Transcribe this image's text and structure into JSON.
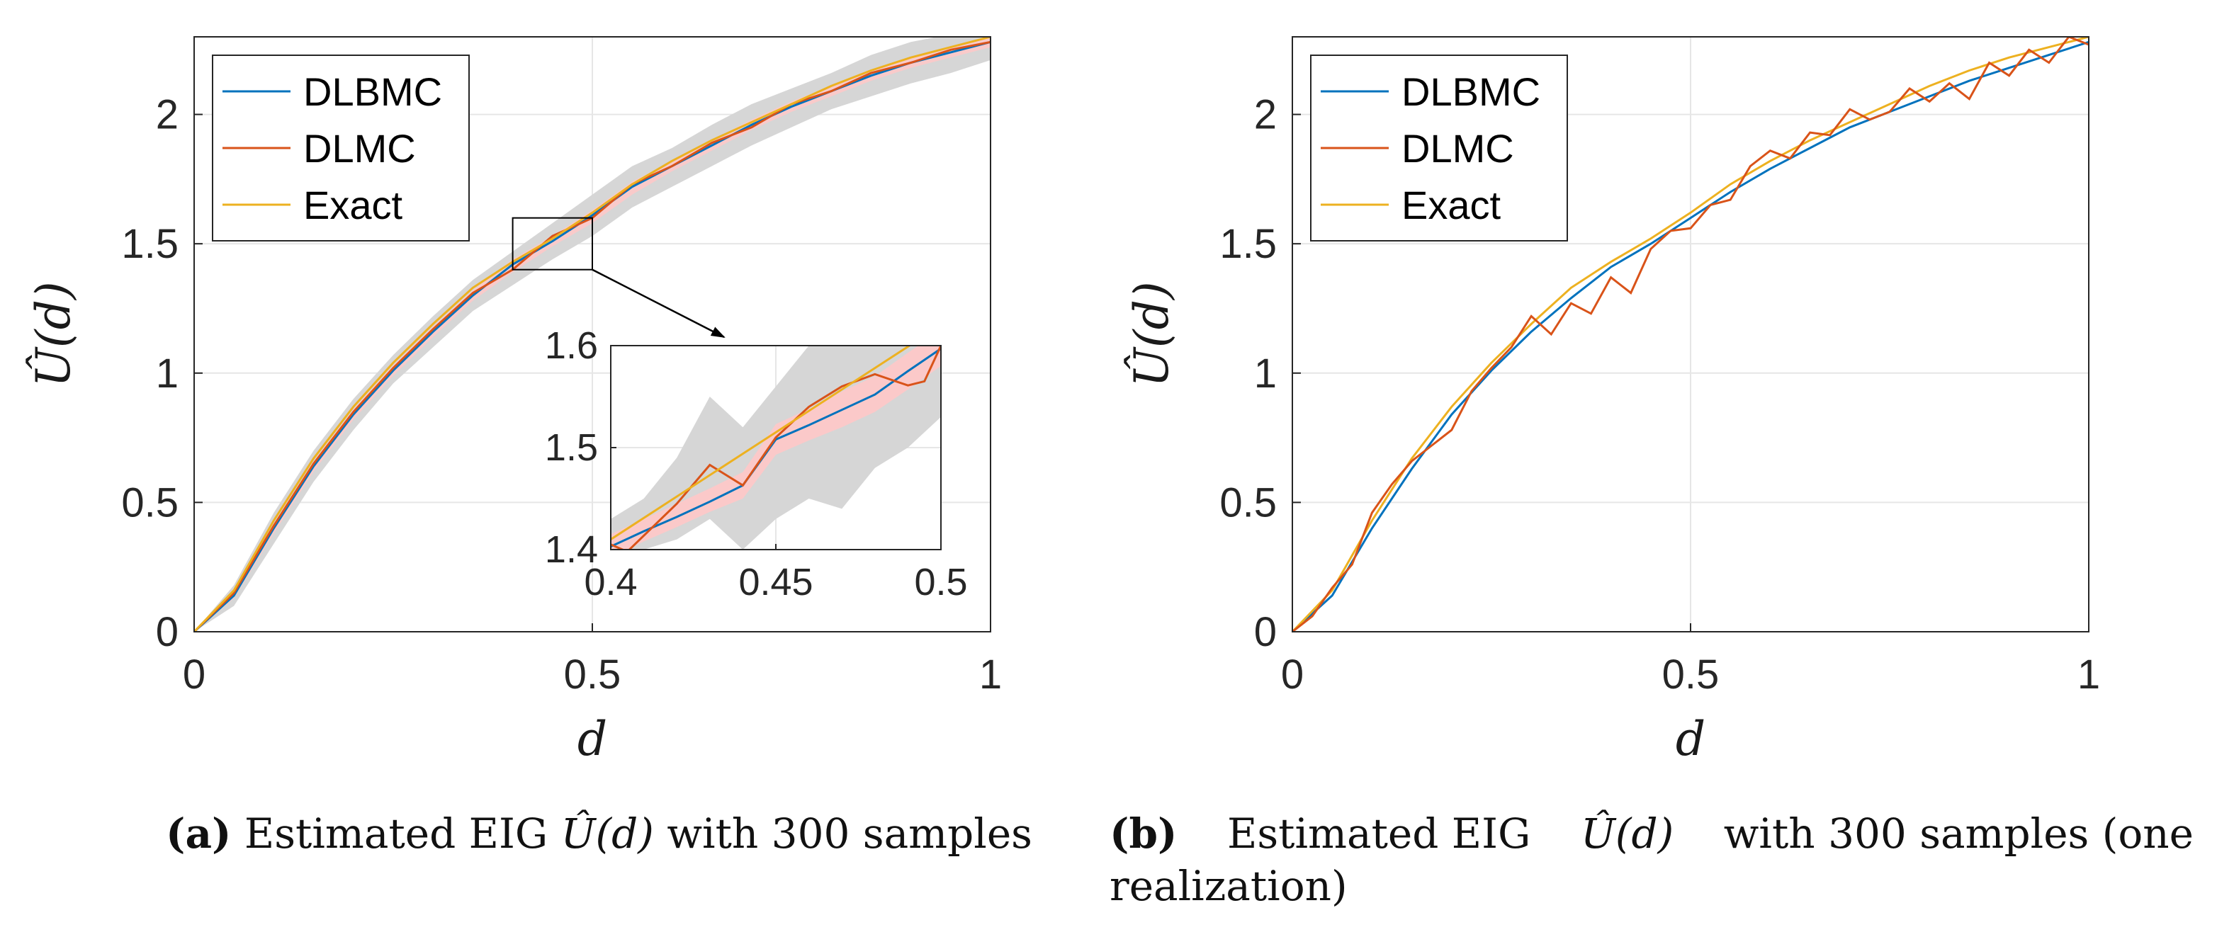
{
  "chart_data": [
    {
      "type": "line",
      "panel": "a",
      "xlabel": "d",
      "ylabel": "Û(d)",
      "xlim": [
        0,
        1
      ],
      "ylim": [
        0,
        2.3
      ],
      "xticks": [
        "0",
        "0.5",
        "1"
      ],
      "yticks": [
        "0",
        "0.5",
        "1",
        "1.5",
        "2"
      ],
      "grid": true,
      "legend_position": "top-left",
      "legend": [
        "DLBMC",
        "DLMC",
        "Exact"
      ],
      "colors": {
        "DLBMC": "#0072BD",
        "DLMC": "#D95319",
        "Exact": "#EDB120",
        "band_outer": "#d4d4d4",
        "band_inner": "#ffc8c8"
      },
      "series": [
        {
          "name": "DLBMC",
          "x": [
            0,
            0.05,
            0.1,
            0.15,
            0.2,
            0.25,
            0.3,
            0.35,
            0.4,
            0.45,
            0.5,
            0.55,
            0.6,
            0.65,
            0.7,
            0.75,
            0.8,
            0.85,
            0.9,
            0.95,
            1.0
          ],
          "y": [
            0,
            0.14,
            0.4,
            0.64,
            0.84,
            1.01,
            1.16,
            1.3,
            1.42,
            1.51,
            1.61,
            1.72,
            1.8,
            1.88,
            1.96,
            2.03,
            2.09,
            2.15,
            2.2,
            2.24,
            2.28
          ]
        },
        {
          "name": "DLMC",
          "x": [
            0,
            0.05,
            0.1,
            0.15,
            0.2,
            0.25,
            0.3,
            0.35,
            0.4,
            0.45,
            0.5,
            0.55,
            0.6,
            0.65,
            0.7,
            0.75,
            0.8,
            0.85,
            0.9,
            0.95,
            1.0
          ],
          "y": [
            0,
            0.15,
            0.41,
            0.65,
            0.85,
            1.02,
            1.17,
            1.31,
            1.4,
            1.53,
            1.6,
            1.73,
            1.8,
            1.89,
            1.95,
            2.04,
            2.09,
            2.16,
            2.2,
            2.25,
            2.28
          ]
        },
        {
          "name": "Exact",
          "x": [
            0,
            0.05,
            0.1,
            0.15,
            0.2,
            0.25,
            0.3,
            0.35,
            0.4,
            0.45,
            0.5,
            0.55,
            0.6,
            0.65,
            0.7,
            0.75,
            0.8,
            0.85,
            0.9,
            0.95,
            1.0
          ],
          "y": [
            0,
            0.16,
            0.43,
            0.67,
            0.87,
            1.04,
            1.19,
            1.33,
            1.43,
            1.52,
            1.62,
            1.73,
            1.82,
            1.9,
            1.97,
            2.04,
            2.11,
            2.17,
            2.22,
            2.26,
            2.3
          ]
        }
      ],
      "band_outer": {
        "x": [
          0,
          0.05,
          0.1,
          0.15,
          0.2,
          0.25,
          0.3,
          0.35,
          0.4,
          0.45,
          0.5,
          0.55,
          0.6,
          0.65,
          0.7,
          0.75,
          0.8,
          0.85,
          0.9,
          0.95,
          1.0
        ],
        "lower": [
          0,
          0.1,
          0.34,
          0.58,
          0.78,
          0.96,
          1.1,
          1.24,
          1.34,
          1.44,
          1.53,
          1.64,
          1.72,
          1.8,
          1.88,
          1.95,
          2.02,
          2.07,
          2.12,
          2.16,
          2.21
        ],
        "upper": [
          0,
          0.18,
          0.46,
          0.7,
          0.9,
          1.07,
          1.22,
          1.36,
          1.47,
          1.58,
          1.69,
          1.8,
          1.87,
          1.96,
          2.04,
          2.1,
          2.16,
          2.23,
          2.28,
          2.31,
          2.33
        ]
      },
      "band_inner": {
        "x": [
          0,
          0.05,
          0.1,
          0.15,
          0.2,
          0.25,
          0.3,
          0.35,
          0.4,
          0.45,
          0.5,
          0.55,
          0.6,
          0.65,
          0.7,
          0.75,
          0.8,
          0.85,
          0.9,
          0.95,
          1.0
        ],
        "lower": [
          0,
          0.13,
          0.38,
          0.62,
          0.82,
          0.99,
          1.14,
          1.28,
          1.39,
          1.49,
          1.58,
          1.69,
          1.78,
          1.86,
          1.94,
          2.01,
          2.07,
          2.13,
          2.18,
          2.22,
          2.26
        ],
        "upper": [
          0,
          0.16,
          0.42,
          0.66,
          0.86,
          1.03,
          1.18,
          1.32,
          1.44,
          1.53,
          1.63,
          1.74,
          1.82,
          1.9,
          1.98,
          2.05,
          2.11,
          2.17,
          2.22,
          2.26,
          2.3
        ]
      },
      "zoom_box": {
        "xlim": [
          0.4,
          0.5
        ],
        "ylim": [
          1.4,
          1.6
        ]
      },
      "inset": {
        "xlim": [
          0.4,
          0.5
        ],
        "ylim": [
          1.4,
          1.6
        ],
        "xticks": [
          "0.4",
          "0.45",
          "0.5"
        ],
        "yticks": [
          "1.4",
          "1.5",
          "1.6"
        ],
        "series": [
          {
            "name": "DLBMC",
            "x": [
              0.4,
              0.41,
              0.42,
              0.43,
              0.44,
              0.45,
              0.46,
              0.47,
              0.48,
              0.49,
              0.5
            ],
            "y": [
              1.403,
              1.418,
              1.432,
              1.447,
              1.463,
              1.508,
              1.522,
              1.537,
              1.552,
              1.575,
              1.597
            ]
          },
          {
            "name": "DLMC",
            "x": [
              0.4,
              0.405,
              0.42,
              0.43,
              0.44,
              0.45,
              0.46,
              0.47,
              0.48,
              0.49,
              0.495,
              0.5
            ],
            "y": [
              1.405,
              1.398,
              1.445,
              1.483,
              1.463,
              1.51,
              1.54,
              1.56,
              1.572,
              1.561,
              1.565,
              1.6
            ]
          },
          {
            "name": "Exact",
            "x": [
              0.4,
              0.5
            ],
            "y": [
              1.41,
              1.62
            ]
          }
        ],
        "band_outer": {
          "x": [
            0.4,
            0.41,
            0.42,
            0.43,
            0.44,
            0.45,
            0.46,
            0.47,
            0.48,
            0.49,
            0.5
          ],
          "lower": [
            1.38,
            1.4,
            1.41,
            1.43,
            1.4,
            1.43,
            1.45,
            1.44,
            1.48,
            1.5,
            1.53
          ],
          "upper": [
            1.43,
            1.45,
            1.49,
            1.55,
            1.52,
            1.56,
            1.6,
            1.62,
            1.63,
            1.63,
            1.63
          ]
        },
        "band_inner": {
          "x": [
            0.4,
            0.41,
            0.42,
            0.43,
            0.44,
            0.45,
            0.46,
            0.47,
            0.48,
            0.49,
            0.5
          ],
          "lower": [
            1.392,
            1.408,
            1.422,
            1.437,
            1.45,
            1.493,
            1.507,
            1.52,
            1.535,
            1.557,
            1.58
          ],
          "upper": [
            1.415,
            1.43,
            1.445,
            1.46,
            1.476,
            1.523,
            1.538,
            1.555,
            1.57,
            1.593,
            1.615
          ]
        }
      },
      "caption": {
        "tag": "(a)",
        "text_before": "Estimated EIG",
        "math": "Û(d)",
        "text_after": "with 300 samples"
      }
    },
    {
      "type": "line",
      "panel": "b",
      "xlabel": "d",
      "ylabel": "Û(d)",
      "xlim": [
        0,
        1
      ],
      "ylim": [
        0,
        2.3
      ],
      "xticks": [
        "0",
        "0.5",
        "1"
      ],
      "yticks": [
        "0",
        "0.5",
        "1",
        "1.5",
        "2"
      ],
      "grid": true,
      "legend_position": "top-left",
      "legend": [
        "DLBMC",
        "DLMC",
        "Exact"
      ],
      "colors": {
        "DLBMC": "#0072BD",
        "DLMC": "#D95319",
        "Exact": "#EDB120"
      },
      "series": [
        {
          "name": "DLBMC",
          "x": [
            0,
            0.05,
            0.1,
            0.15,
            0.2,
            0.25,
            0.3,
            0.35,
            0.4,
            0.45,
            0.5,
            0.55,
            0.6,
            0.65,
            0.7,
            0.75,
            0.8,
            0.85,
            0.9,
            0.95,
            1.0
          ],
          "y": [
            0,
            0.14,
            0.4,
            0.63,
            0.84,
            1.01,
            1.16,
            1.29,
            1.41,
            1.5,
            1.6,
            1.7,
            1.79,
            1.87,
            1.95,
            2.01,
            2.07,
            2.13,
            2.18,
            2.23,
            2.28
          ]
        },
        {
          "name": "DLMC",
          "x": [
            0,
            0.025,
            0.05,
            0.075,
            0.1,
            0.125,
            0.15,
            0.175,
            0.2,
            0.225,
            0.25,
            0.275,
            0.3,
            0.325,
            0.35,
            0.375,
            0.4,
            0.425,
            0.45,
            0.475,
            0.5,
            0.525,
            0.55,
            0.575,
            0.6,
            0.625,
            0.65,
            0.675,
            0.7,
            0.725,
            0.75,
            0.775,
            0.8,
            0.825,
            0.85,
            0.875,
            0.9,
            0.925,
            0.95,
            0.975,
            1.0
          ],
          "y": [
            0,
            0.06,
            0.17,
            0.26,
            0.46,
            0.57,
            0.66,
            0.72,
            0.78,
            0.93,
            1.02,
            1.1,
            1.22,
            1.15,
            1.27,
            1.23,
            1.37,
            1.31,
            1.48,
            1.55,
            1.56,
            1.65,
            1.67,
            1.8,
            1.86,
            1.83,
            1.93,
            1.92,
            2.02,
            1.98,
            2.01,
            2.1,
            2.05,
            2.12,
            2.06,
            2.2,
            2.15,
            2.25,
            2.2,
            2.3,
            2.27
          ]
        },
        {
          "name": "Exact",
          "x": [
            0,
            0.05,
            0.1,
            0.15,
            0.2,
            0.25,
            0.3,
            0.35,
            0.4,
            0.45,
            0.5,
            0.55,
            0.6,
            0.65,
            0.7,
            0.75,
            0.8,
            0.85,
            0.9,
            0.95,
            1.0
          ],
          "y": [
            0,
            0.16,
            0.43,
            0.67,
            0.87,
            1.04,
            1.19,
            1.33,
            1.43,
            1.52,
            1.62,
            1.73,
            1.82,
            1.9,
            1.97,
            2.04,
            2.11,
            2.17,
            2.22,
            2.26,
            2.3
          ]
        }
      ],
      "caption": {
        "tag": "(b)",
        "text_before": "Estimated EIG",
        "math": "Û(d)",
        "text_after": "with 300 samples (one",
        "line2": "realization)"
      }
    }
  ]
}
